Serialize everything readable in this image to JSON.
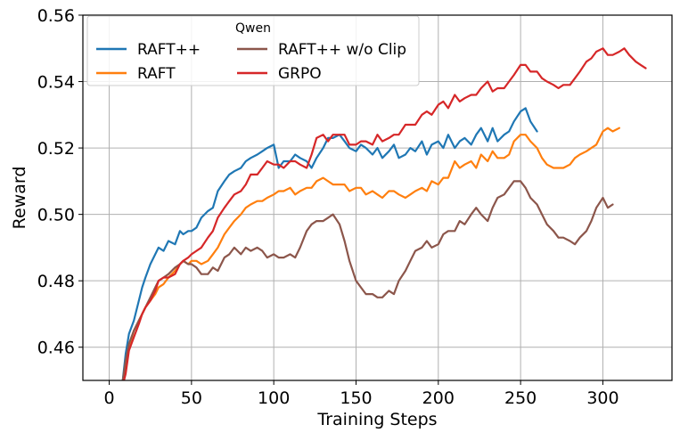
{
  "chart_data": {
    "type": "line",
    "title": "",
    "xlabel": "Training Steps",
    "ylabel": "Reward",
    "xlim": [
      -16,
      342
    ],
    "ylim": [
      0.45,
      0.56
    ],
    "xticks": [
      0,
      50,
      100,
      150,
      200,
      250,
      300
    ],
    "xtick_labels": [
      "0",
      "50",
      "100",
      "150",
      "200",
      "250",
      "300"
    ],
    "yticks": [
      0.46,
      0.48,
      0.5,
      0.52,
      0.54,
      0.56
    ],
    "ytick_labels": [
      "0.46",
      "0.48",
      "0.50",
      "0.52",
      "0.54",
      "0.56"
    ],
    "grid": true,
    "legend": {
      "title": "Qwen",
      "placement": "top-left",
      "ncol": 2
    },
    "series": [
      {
        "name": "RAFT++",
        "color": "#1f77b4",
        "x": [
          8,
          10,
          12,
          15,
          18,
          20,
          22,
          25,
          28,
          30,
          33,
          36,
          40,
          43,
          45,
          48,
          50,
          53,
          56,
          60,
          63,
          66,
          70,
          73,
          76,
          80,
          83,
          86,
          90,
          93,
          96,
          100,
          103,
          106,
          110,
          113,
          116,
          120,
          123,
          126,
          130,
          133,
          136,
          140,
          143,
          146,
          150,
          153,
          156,
          160,
          163,
          166,
          170,
          173,
          176,
          180,
          183,
          186,
          190,
          193,
          196,
          200,
          203,
          206,
          210,
          213,
          216,
          220,
          223,
          226,
          230,
          233,
          236,
          240,
          243,
          246,
          250,
          253,
          256,
          260
        ],
        "y": [
          0.449,
          0.458,
          0.464,
          0.468,
          0.474,
          0.478,
          0.481,
          0.485,
          0.488,
          0.49,
          0.489,
          0.492,
          0.491,
          0.495,
          0.494,
          0.495,
          0.495,
          0.496,
          0.499,
          0.501,
          0.502,
          0.507,
          0.51,
          0.512,
          0.513,
          0.514,
          0.516,
          0.517,
          0.518,
          0.519,
          0.52,
          0.521,
          0.514,
          0.516,
          0.516,
          0.518,
          0.517,
          0.516,
          0.514,
          0.517,
          0.52,
          0.523,
          0.523,
          0.524,
          0.522,
          0.52,
          0.519,
          0.521,
          0.52,
          0.518,
          0.52,
          0.517,
          0.519,
          0.521,
          0.517,
          0.518,
          0.52,
          0.519,
          0.522,
          0.518,
          0.521,
          0.522,
          0.52,
          0.524,
          0.52,
          0.522,
          0.523,
          0.521,
          0.524,
          0.526,
          0.522,
          0.526,
          0.522,
          0.524,
          0.525,
          0.528,
          0.531,
          0.532,
          0.528,
          0.525
        ]
      },
      {
        "name": "RAFT",
        "color": "#ff7f0e",
        "x": [
          8,
          10,
          12,
          15,
          18,
          20,
          22,
          25,
          28,
          30,
          33,
          36,
          40,
          43,
          45,
          48,
          50,
          53,
          56,
          60,
          63,
          66,
          70,
          73,
          76,
          80,
          83,
          86,
          90,
          93,
          96,
          100,
          103,
          106,
          110,
          113,
          116,
          120,
          123,
          126,
          130,
          133,
          136,
          140,
          143,
          146,
          150,
          153,
          156,
          160,
          163,
          166,
          170,
          173,
          176,
          180,
          183,
          186,
          190,
          193,
          196,
          200,
          203,
          206,
          210,
          213,
          216,
          220,
          223,
          226,
          230,
          233,
          236,
          240,
          243,
          246,
          250,
          253,
          256,
          260,
          263,
          266,
          270,
          273,
          276,
          280,
          283,
          286,
          290,
          293,
          296,
          300,
          303,
          306,
          310
        ],
        "y": [
          0.449,
          0.455,
          0.46,
          0.465,
          0.468,
          0.47,
          0.472,
          0.474,
          0.476,
          0.478,
          0.479,
          0.481,
          0.483,
          0.485,
          0.486,
          0.485,
          0.486,
          0.486,
          0.485,
          0.486,
          0.488,
          0.49,
          0.494,
          0.496,
          0.498,
          0.5,
          0.502,
          0.503,
          0.504,
          0.504,
          0.505,
          0.506,
          0.507,
          0.507,
          0.508,
          0.506,
          0.507,
          0.508,
          0.508,
          0.51,
          0.511,
          0.51,
          0.509,
          0.509,
          0.509,
          0.507,
          0.508,
          0.508,
          0.506,
          0.507,
          0.506,
          0.505,
          0.507,
          0.507,
          0.506,
          0.505,
          0.506,
          0.507,
          0.508,
          0.507,
          0.51,
          0.509,
          0.511,
          0.511,
          0.516,
          0.514,
          0.515,
          0.516,
          0.514,
          0.518,
          0.516,
          0.519,
          0.517,
          0.517,
          0.518,
          0.522,
          0.524,
          0.524,
          0.522,
          0.52,
          0.517,
          0.515,
          0.514,
          0.514,
          0.514,
          0.515,
          0.517,
          0.518,
          0.519,
          0.52,
          0.521,
          0.525,
          0.526,
          0.525,
          0.526
        ]
      },
      {
        "name": "RAFT++ w/o Clip",
        "color": "#8c564b",
        "x": [
          8,
          10,
          12,
          15,
          18,
          20,
          22,
          25,
          28,
          30,
          33,
          36,
          40,
          43,
          45,
          48,
          50,
          53,
          56,
          60,
          63,
          66,
          70,
          73,
          76,
          80,
          83,
          86,
          90,
          93,
          96,
          100,
          103,
          106,
          110,
          113,
          116,
          120,
          123,
          126,
          130,
          133,
          136,
          140,
          143,
          146,
          150,
          153,
          156,
          160,
          163,
          166,
          170,
          173,
          176,
          180,
          183,
          186,
          190,
          193,
          196,
          200,
          203,
          206,
          210,
          213,
          216,
          220,
          223,
          226,
          230,
          233,
          236,
          240,
          243,
          246,
          250,
          253,
          256,
          260,
          263,
          266,
          270,
          273,
          276,
          280,
          283,
          286,
          290,
          293,
          296,
          300,
          303,
          306
        ],
        "y": [
          0.449,
          0.456,
          0.461,
          0.465,
          0.468,
          0.47,
          0.472,
          0.475,
          0.478,
          0.48,
          0.481,
          0.482,
          0.484,
          0.485,
          0.486,
          0.485,
          0.485,
          0.484,
          0.482,
          0.482,
          0.484,
          0.483,
          0.487,
          0.488,
          0.49,
          0.488,
          0.49,
          0.489,
          0.49,
          0.489,
          0.487,
          0.488,
          0.487,
          0.487,
          0.488,
          0.487,
          0.49,
          0.495,
          0.497,
          0.498,
          0.498,
          0.499,
          0.5,
          0.497,
          0.492,
          0.486,
          0.48,
          0.478,
          0.476,
          0.476,
          0.475,
          0.475,
          0.477,
          0.476,
          0.48,
          0.483,
          0.486,
          0.489,
          0.49,
          0.492,
          0.49,
          0.491,
          0.494,
          0.495,
          0.495,
          0.498,
          0.497,
          0.5,
          0.502,
          0.5,
          0.498,
          0.502,
          0.505,
          0.506,
          0.508,
          0.51,
          0.51,
          0.508,
          0.505,
          0.503,
          0.5,
          0.497,
          0.495,
          0.493,
          0.493,
          0.492,
          0.491,
          0.493,
          0.495,
          0.498,
          0.502,
          0.505,
          0.502,
          0.503
        ]
      },
      {
        "name": "GRPO",
        "color": "#d62728",
        "x": [
          8,
          10,
          12,
          15,
          18,
          20,
          22,
          25,
          28,
          30,
          33,
          36,
          40,
          43,
          45,
          48,
          50,
          53,
          56,
          60,
          63,
          66,
          70,
          73,
          76,
          80,
          83,
          86,
          90,
          93,
          96,
          100,
          103,
          106,
          110,
          113,
          116,
          120,
          123,
          126,
          130,
          133,
          136,
          140,
          143,
          146,
          150,
          153,
          156,
          160,
          163,
          166,
          170,
          173,
          176,
          180,
          183,
          186,
          190,
          193,
          196,
          200,
          203,
          206,
          210,
          213,
          216,
          220,
          223,
          226,
          230,
          233,
          236,
          240,
          243,
          246,
          250,
          253,
          256,
          260,
          263,
          266,
          270,
          273,
          276,
          280,
          283,
          286,
          290,
          293,
          296,
          300,
          303,
          306,
          310,
          313,
          316,
          320,
          323,
          326
        ],
        "y": [
          0.448,
          0.452,
          0.459,
          0.463,
          0.467,
          0.47,
          0.472,
          0.474,
          0.477,
          0.48,
          0.481,
          0.481,
          0.482,
          0.485,
          0.486,
          0.487,
          0.488,
          0.489,
          0.49,
          0.493,
          0.495,
          0.499,
          0.502,
          0.504,
          0.506,
          0.507,
          0.509,
          0.512,
          0.512,
          0.514,
          0.516,
          0.515,
          0.515,
          0.514,
          0.516,
          0.516,
          0.515,
          0.514,
          0.518,
          0.523,
          0.524,
          0.522,
          0.524,
          0.524,
          0.524,
          0.521,
          0.521,
          0.522,
          0.522,
          0.521,
          0.524,
          0.522,
          0.523,
          0.524,
          0.524,
          0.527,
          0.527,
          0.527,
          0.53,
          0.531,
          0.53,
          0.533,
          0.534,
          0.532,
          0.536,
          0.534,
          0.535,
          0.536,
          0.536,
          0.538,
          0.54,
          0.537,
          0.538,
          0.538,
          0.54,
          0.542,
          0.545,
          0.545,
          0.543,
          0.543,
          0.541,
          0.54,
          0.539,
          0.538,
          0.539,
          0.539,
          0.541,
          0.543,
          0.546,
          0.547,
          0.549,
          0.55,
          0.548,
          0.548,
          0.549,
          0.55,
          0.548,
          0.546,
          0.545,
          0.544
        ]
      }
    ]
  }
}
